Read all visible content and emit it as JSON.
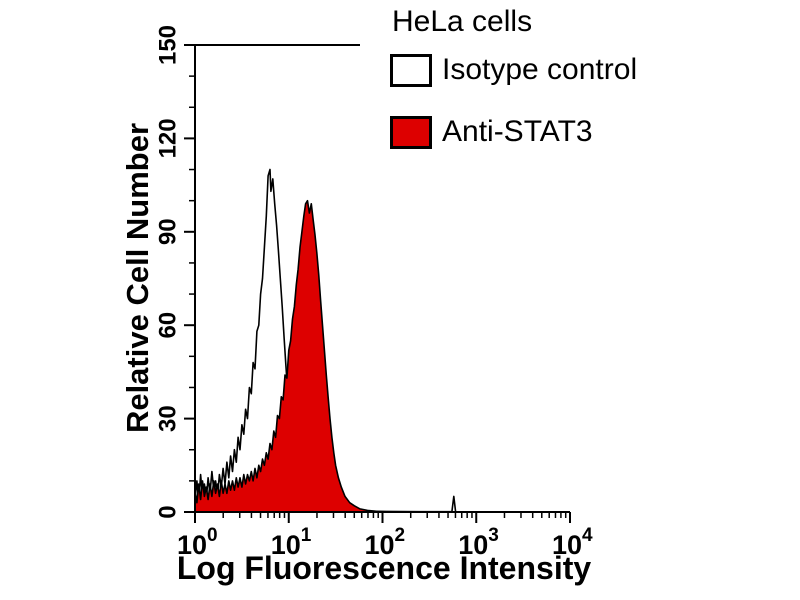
{
  "chart_data": {
    "type": "area",
    "subtype": "flow-cytometry-histogram",
    "title": "HeLa cells",
    "xlabel": "Log Fluorescence Intensity",
    "ylabel": "Relative Cell Number",
    "x_scale": "log",
    "xlim_log": [
      0,
      4
    ],
    "ylim": [
      0,
      150
    ],
    "y_ticks": [
      0,
      30,
      60,
      90,
      120,
      150
    ],
    "y_minor_step": 10,
    "x_ticks": [
      {
        "base": "10",
        "exp": "0"
      },
      {
        "base": "10",
        "exp": "1"
      },
      {
        "base": "10",
        "exp": "2"
      },
      {
        "base": "10",
        "exp": "3"
      },
      {
        "base": "10",
        "exp": "4"
      }
    ],
    "grid": false,
    "legend_position": "top-right",
    "legend": [
      {
        "label": "Isotype control",
        "fill": "#ffffff",
        "stroke": "#000000"
      },
      {
        "label": "Anti-STAT3",
        "fill": "#dd0000",
        "stroke": "#000000"
      }
    ],
    "series": [
      {
        "name": "Isotype control",
        "fill": "none",
        "stroke": "#000000",
        "peak": {
          "logx": 0.8,
          "count": 110
        },
        "points": [
          [
            0,
            4
          ],
          [
            0.02,
            10
          ],
          [
            0.04,
            3
          ],
          [
            0.06,
            12
          ],
          [
            0.08,
            5
          ],
          [
            0.1,
            9
          ],
          [
            0.12,
            4
          ],
          [
            0.14,
            11
          ],
          [
            0.16,
            6
          ],
          [
            0.18,
            13
          ],
          [
            0.2,
            7
          ],
          [
            0.22,
            10
          ],
          [
            0.24,
            5
          ],
          [
            0.26,
            12
          ],
          [
            0.28,
            8
          ],
          [
            0.3,
            14
          ],
          [
            0.32,
            9
          ],
          [
            0.34,
            16
          ],
          [
            0.36,
            11
          ],
          [
            0.38,
            18
          ],
          [
            0.4,
            13
          ],
          [
            0.42,
            20
          ],
          [
            0.44,
            16
          ],
          [
            0.46,
            24
          ],
          [
            0.48,
            20
          ],
          [
            0.5,
            28
          ],
          [
            0.52,
            25
          ],
          [
            0.54,
            33
          ],
          [
            0.56,
            30
          ],
          [
            0.58,
            40
          ],
          [
            0.6,
            38
          ],
          [
            0.62,
            48
          ],
          [
            0.64,
            46
          ],
          [
            0.66,
            58
          ],
          [
            0.68,
            60
          ],
          [
            0.7,
            70
          ],
          [
            0.72,
            75
          ],
          [
            0.74,
            85
          ],
          [
            0.76,
            95
          ],
          [
            0.78,
            108
          ],
          [
            0.8,
            110
          ],
          [
            0.81,
            103
          ],
          [
            0.83,
            107
          ],
          [
            0.85,
            99
          ],
          [
            0.87,
            92
          ],
          [
            0.89,
            84
          ],
          [
            0.91,
            75
          ],
          [
            0.93,
            66
          ],
          [
            0.95,
            56
          ],
          [
            0.97,
            47
          ],
          [
            0.99,
            38
          ],
          [
            1.01,
            31
          ],
          [
            1.03,
            24
          ],
          [
            1.05,
            19
          ],
          [
            1.07,
            14
          ],
          [
            1.09,
            11
          ],
          [
            1.11,
            8
          ],
          [
            1.13,
            6
          ],
          [
            1.16,
            4
          ],
          [
            1.2,
            3
          ],
          [
            1.25,
            2
          ],
          [
            1.3,
            1.5
          ],
          [
            1.4,
            1
          ],
          [
            1.5,
            0.8
          ],
          [
            1.6,
            0.5
          ],
          [
            1.8,
            0.3
          ],
          [
            2,
            0.2
          ],
          [
            2.4,
            0.1
          ],
          [
            2.74,
            0.1
          ],
          [
            2.76,
            5
          ],
          [
            2.78,
            0.1
          ],
          [
            3,
            0
          ]
        ]
      },
      {
        "name": "Anti-STAT3",
        "fill": "#dd0000",
        "stroke": "#000000",
        "peak": {
          "logx": 1.2,
          "count": 100
        },
        "points": [
          [
            0,
            7
          ],
          [
            0.02,
            3
          ],
          [
            0.04,
            9
          ],
          [
            0.06,
            4
          ],
          [
            0.08,
            10
          ],
          [
            0.1,
            5
          ],
          [
            0.12,
            8
          ],
          [
            0.14,
            4
          ],
          [
            0.16,
            9
          ],
          [
            0.18,
            5
          ],
          [
            0.2,
            10
          ],
          [
            0.22,
            6
          ],
          [
            0.24,
            9
          ],
          [
            0.26,
            5
          ],
          [
            0.28,
            10
          ],
          [
            0.3,
            6
          ],
          [
            0.32,
            9
          ],
          [
            0.34,
            6
          ],
          [
            0.36,
            10
          ],
          [
            0.38,
            7
          ],
          [
            0.4,
            10
          ],
          [
            0.42,
            7
          ],
          [
            0.44,
            11
          ],
          [
            0.46,
            8
          ],
          [
            0.48,
            11
          ],
          [
            0.5,
            8
          ],
          [
            0.52,
            12
          ],
          [
            0.54,
            9
          ],
          [
            0.56,
            12
          ],
          [
            0.58,
            10
          ],
          [
            0.6,
            13
          ],
          [
            0.62,
            10
          ],
          [
            0.64,
            14
          ],
          [
            0.66,
            11
          ],
          [
            0.68,
            15
          ],
          [
            0.7,
            13
          ],
          [
            0.72,
            17
          ],
          [
            0.74,
            15
          ],
          [
            0.76,
            19
          ],
          [
            0.78,
            17
          ],
          [
            0.8,
            22
          ],
          [
            0.82,
            20
          ],
          [
            0.84,
            26
          ],
          [
            0.86,
            24
          ],
          [
            0.88,
            31
          ],
          [
            0.9,
            30
          ],
          [
            0.92,
            37
          ],
          [
            0.94,
            36
          ],
          [
            0.96,
            44
          ],
          [
            0.98,
            43
          ],
          [
            1,
            52
          ],
          [
            1.02,
            55
          ],
          [
            1.04,
            62
          ],
          [
            1.06,
            66
          ],
          [
            1.08,
            73
          ],
          [
            1.1,
            78
          ],
          [
            1.12,
            85
          ],
          [
            1.14,
            90
          ],
          [
            1.16,
            95
          ],
          [
            1.18,
            99
          ],
          [
            1.2,
            100
          ],
          [
            1.22,
            96
          ],
          [
            1.24,
            99
          ],
          [
            1.26,
            94
          ],
          [
            1.28,
            89
          ],
          [
            1.3,
            83
          ],
          [
            1.32,
            76
          ],
          [
            1.34,
            68
          ],
          [
            1.36,
            60
          ],
          [
            1.38,
            52
          ],
          [
            1.4,
            44
          ],
          [
            1.42,
            37
          ],
          [
            1.44,
            30
          ],
          [
            1.46,
            24
          ],
          [
            1.48,
            19
          ],
          [
            1.5,
            15
          ],
          [
            1.53,
            11
          ],
          [
            1.56,
            8
          ],
          [
            1.6,
            5
          ],
          [
            1.65,
            3
          ],
          [
            1.7,
            2
          ],
          [
            1.76,
            1
          ],
          [
            1.84,
            0.5
          ],
          [
            1.95,
            0.2
          ],
          [
            2.1,
            0
          ]
        ]
      }
    ],
    "colors": {
      "anti_stat3_fill": "#dd0000",
      "outline": "#000000",
      "background": "#ffffff"
    }
  }
}
